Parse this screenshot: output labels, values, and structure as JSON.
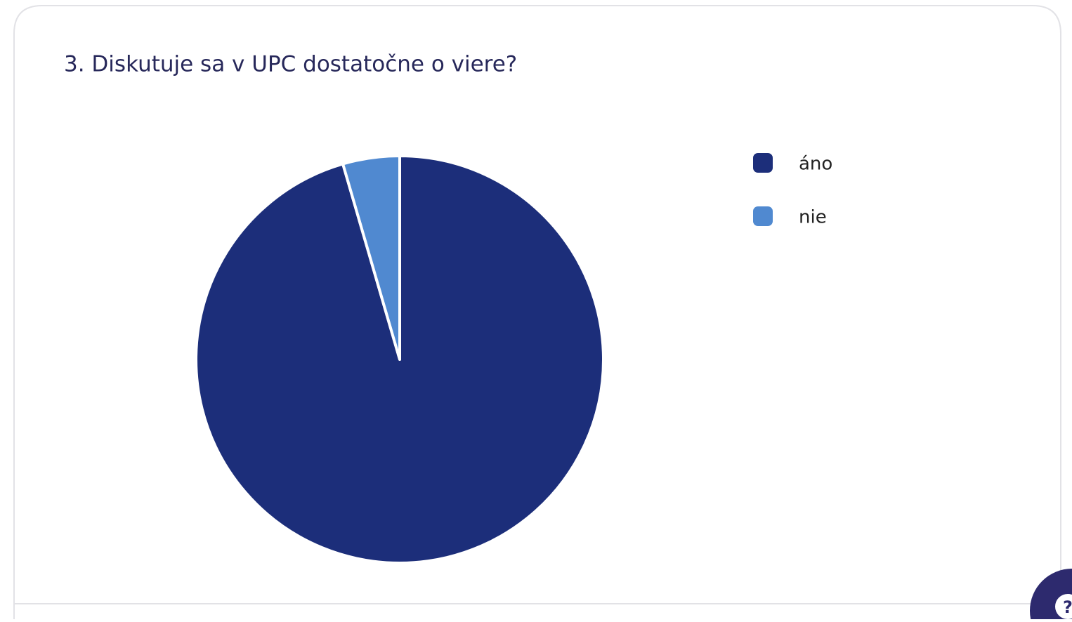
{
  "chart_data": {
    "type": "pie",
    "title": "3. Diskutuje sa v UPC dostatočne o viere?",
    "categories": [
      "áno",
      "nie"
    ],
    "values": [
      95.5,
      4.5
    ],
    "colors": [
      "#1c2e7a",
      "#5089d0"
    ]
  },
  "help_button": "?"
}
